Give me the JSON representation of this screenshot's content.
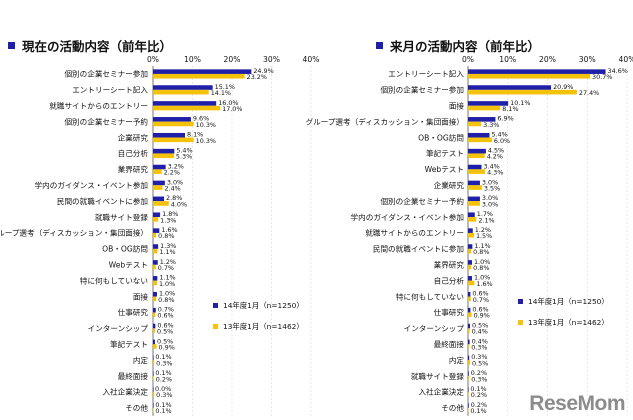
{
  "colors": {
    "y2014": "#1f1fa8",
    "y2013": "#f5c20a"
  },
  "watermark": "ReseMom",
  "chart_data": [
    {
      "type": "bar",
      "orientation": "horizontal",
      "title": "現在の活動内容（前年比）",
      "xlim": [
        0,
        40
      ],
      "x_ticks": [
        "0%",
        "10%",
        "20%",
        "30%",
        "40%"
      ],
      "categories": [
        "個別の企業セミナー参加",
        "エントリーシート記入",
        "就職サイトからのエントリー",
        "個別の企業セミナー予約",
        "企業研究",
        "自己分析",
        "業界研究",
        "学内のガイダンス・イベント参加",
        "民間の就職イベントに参加",
        "就職サイト登録",
        "グループ選考（ディスカッション・集団面接）",
        "OB・OG訪問",
        "Webテスト",
        "特に何もしていない",
        "面接",
        "仕事研究",
        "インターンシップ",
        "筆記テスト",
        "内定",
        "最終面接",
        "入社企業決定",
        "その他"
      ],
      "series": [
        {
          "name": "14年度1月（n=1250）",
          "values": [
            24.9,
            15.1,
            16.0,
            9.6,
            8.1,
            5.4,
            3.2,
            3.0,
            2.8,
            1.8,
            1.6,
            1.3,
            1.2,
            1.1,
            1.0,
            0.7,
            0.6,
            0.5,
            0.1,
            0.1,
            0.0,
            0.1
          ]
        },
        {
          "name": "13年度1月（n=1462）",
          "values": [
            23.2,
            14.1,
            17.0,
            10.3,
            10.3,
            5.3,
            2.2,
            2.4,
            4.0,
            1.3,
            0.8,
            1.1,
            0.7,
            1.0,
            0.8,
            0.6,
            0.5,
            0.9,
            0.3,
            0.2,
            0.3,
            0.1
          ]
        }
      ],
      "labels_2014": [
        "24.9%",
        "15.1%",
        "16.0%",
        "9.6%",
        "8.1%",
        "5.4%",
        "3.2%",
        "3.0%",
        "2.8%",
        "1.8%",
        "1.6%",
        "1.3%",
        "1.2%",
        "1.1%",
        "1.0%",
        "0.7%",
        "0.6%",
        "0.5%",
        "0.1%",
        "0.1%",
        "0.0%",
        "0.1%"
      ],
      "labels_2013": [
        "23.2%",
        "14.1%",
        "17.0%",
        "10.3%",
        "10.3%",
        "5.3%",
        "2.2%",
        "2.4%",
        "4.0%",
        "1.3%",
        "0.8%",
        "1.1%",
        "0.7%",
        "1.0%",
        "0.8%",
        "0.6%",
        "0.5%",
        "0.9%",
        "0.3%",
        "0.2%",
        "0.3%",
        "0.1%"
      ],
      "legend": [
        "14年度1月（n=1250）",
        "13年度1月（n=1462）"
      ],
      "legend_position": "bottom-right"
    },
    {
      "type": "bar",
      "orientation": "horizontal",
      "title": "来月の活動内容（前年比）",
      "xlim": [
        0,
        40
      ],
      "x_ticks": [
        "0%",
        "10%",
        "20%",
        "30%",
        "40%"
      ],
      "categories": [
        "エントリーシート記入",
        "個別の企業セミナー参加",
        "面接",
        "グループ選考（ディスカッション・集団面接）",
        "OB・OG訪問",
        "筆記テスト",
        "Webテスト",
        "企業研究",
        "個別の企業セミナー予約",
        "学内のガイダンス・イベント参加",
        "就職サイトからのエントリー",
        "民間の就職イベントに参加",
        "業界研究",
        "自己分析",
        "特に何もしていない",
        "仕事研究",
        "インターンシップ",
        "最終面接",
        "内定",
        "就職サイト登録",
        "入社企業決定",
        "その他"
      ],
      "series": [
        {
          "name": "14年度1月（n=1250）",
          "values": [
            34.6,
            20.9,
            10.1,
            6.9,
            5.4,
            4.5,
            3.4,
            3.0,
            3.0,
            1.7,
            1.2,
            1.1,
            1.0,
            1.0,
            0.6,
            0.6,
            0.5,
            0.4,
            0.3,
            0.2,
            0.1,
            0.2
          ]
        },
        {
          "name": "13年度1月（n=1462）",
          "values": [
            30.7,
            27.4,
            8.1,
            3.3,
            6.0,
            4.2,
            4.3,
            3.5,
            3.0,
            2.1,
            1.5,
            0.8,
            0.8,
            1.6,
            0.7,
            0.9,
            0.4,
            0.3,
            0.5,
            0.3,
            0.2,
            0.1
          ]
        }
      ],
      "labels_2014": [
        "34.6%",
        "20.9%",
        "10.1%",
        "6.9%",
        "5.4%",
        "4.5%",
        "3.4%",
        "3.0%",
        "3.0%",
        "1.7%",
        "1.2%",
        "1.1%",
        "1.0%",
        "1.0%",
        "0.6%",
        "0.6%",
        "0.5%",
        "0.4%",
        "0.3%",
        "0.2%",
        "0.1%",
        "0.2%"
      ],
      "labels_2013": [
        "30.7%",
        "27.4%",
        "8.1%",
        "3.3%",
        "6.0%",
        "4.2%",
        "4.3%",
        "3.5%",
        "3.0%",
        "2.1%",
        "1.5%",
        "0.8%",
        "0.8%",
        "1.6%",
        "0.7%",
        "0.9%",
        "0.4%",
        "0.3%",
        "0.5%",
        "0.3%",
        "0.2%",
        "0.1%"
      ],
      "legend": [
        "14年度1月（n=1250）",
        "13年度1月（n=1462）"
      ],
      "legend_position": "bottom-right"
    }
  ]
}
